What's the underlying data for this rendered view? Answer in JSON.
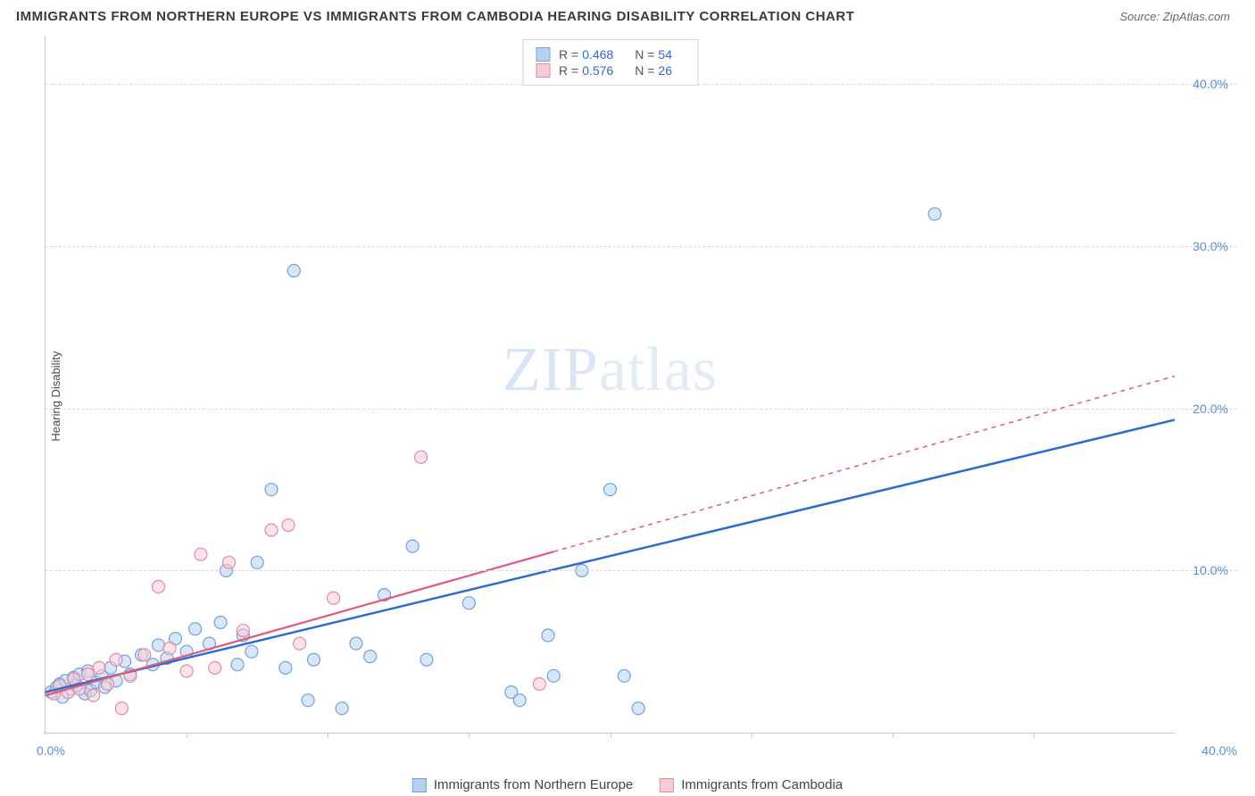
{
  "header": {
    "title": "IMMIGRANTS FROM NORTHERN EUROPE VS IMMIGRANTS FROM CAMBODIA HEARING DISABILITY CORRELATION CHART",
    "source": "Source: ZipAtlas.com"
  },
  "ylabel": "Hearing Disability",
  "watermark": {
    "bold": "ZIP",
    "light": "atlas"
  },
  "chart": {
    "type": "scatter",
    "xlim": [
      0,
      40
    ],
    "ylim": [
      0,
      43
    ],
    "x_tick_min_label": "0.0%",
    "x_tick_max_label": "40.0%",
    "y_gridlines": [
      10,
      20,
      30,
      40
    ],
    "y_tick_labels": [
      "10.0%",
      "20.0%",
      "30.0%",
      "40.0%"
    ],
    "x_minor_ticks": [
      5,
      10,
      15,
      20,
      25,
      30,
      35
    ],
    "background_color": "#ffffff",
    "grid_color": "#d8d8d8",
    "axis_color": "#c9c9c9",
    "tick_text_color": "#5b8fd6",
    "marker_radius": 7,
    "marker_opacity": 0.55,
    "series": [
      {
        "key": "northern_europe",
        "label": "Immigrants from Northern Europe",
        "fill": "#b8d1f0",
        "stroke": "#6fa3e0",
        "line_color": "#2e6bd1",
        "line_width": 2.5,
        "r_value": "0.468",
        "n_value": "54",
        "trend": {
          "x1": 0,
          "y1": 2.5,
          "x2": 40,
          "y2": 19.3,
          "solid_until_x": 40
        },
        "points": [
          [
            0.2,
            2.5
          ],
          [
            0.4,
            2.8
          ],
          [
            0.5,
            3.0
          ],
          [
            0.6,
            2.2
          ],
          [
            0.7,
            3.2
          ],
          [
            0.9,
            2.7
          ],
          [
            1.0,
            3.4
          ],
          [
            1.1,
            2.9
          ],
          [
            1.2,
            3.6
          ],
          [
            1.4,
            2.4
          ],
          [
            1.5,
            3.8
          ],
          [
            1.6,
            2.6
          ],
          [
            1.8,
            3.1
          ],
          [
            2.0,
            3.5
          ],
          [
            2.1,
            2.8
          ],
          [
            2.3,
            4.0
          ],
          [
            2.5,
            3.2
          ],
          [
            2.8,
            4.4
          ],
          [
            3.0,
            3.6
          ],
          [
            3.4,
            4.8
          ],
          [
            3.8,
            4.2
          ],
          [
            4.0,
            5.4
          ],
          [
            4.3,
            4.6
          ],
          [
            4.6,
            5.8
          ],
          [
            5.0,
            5.0
          ],
          [
            5.3,
            6.4
          ],
          [
            5.8,
            5.5
          ],
          [
            6.2,
            6.8
          ],
          [
            6.4,
            10.0
          ],
          [
            6.8,
            4.2
          ],
          [
            7.0,
            6.0
          ],
          [
            7.3,
            5.0
          ],
          [
            7.5,
            10.5
          ],
          [
            8.0,
            15.0
          ],
          [
            8.5,
            4.0
          ],
          [
            8.8,
            28.5
          ],
          [
            9.3,
            2.0
          ],
          [
            9.5,
            4.5
          ],
          [
            10.5,
            1.5
          ],
          [
            11.0,
            5.5
          ],
          [
            11.5,
            4.7
          ],
          [
            12.0,
            8.5
          ],
          [
            13.0,
            11.5
          ],
          [
            13.5,
            4.5
          ],
          [
            15.0,
            8.0
          ],
          [
            16.5,
            2.5
          ],
          [
            16.8,
            2.0
          ],
          [
            17.8,
            6.0
          ],
          [
            18.0,
            3.5
          ],
          [
            19.0,
            10.0
          ],
          [
            20.0,
            15.0
          ],
          [
            20.5,
            3.5
          ],
          [
            21.0,
            1.5
          ],
          [
            31.5,
            32.0
          ]
        ]
      },
      {
        "key": "cambodia",
        "label": "Immigrants from Cambodia",
        "fill": "#f6cdd5",
        "stroke": "#e68aa0",
        "line_color": "#e05a7a",
        "line_width": 2.2,
        "r_value": "0.576",
        "n_value": "26",
        "trend": {
          "x1": 0,
          "y1": 2.3,
          "x2": 40,
          "y2": 22.0,
          "solid_until_x": 18
        },
        "points": [
          [
            0.3,
            2.4
          ],
          [
            0.5,
            2.9
          ],
          [
            0.8,
            2.5
          ],
          [
            1.0,
            3.3
          ],
          [
            1.2,
            2.7
          ],
          [
            1.5,
            3.6
          ],
          [
            1.7,
            2.3
          ],
          [
            1.9,
            4.0
          ],
          [
            2.2,
            3.0
          ],
          [
            2.5,
            4.5
          ],
          [
            2.7,
            1.5
          ],
          [
            3.0,
            3.5
          ],
          [
            3.5,
            4.8
          ],
          [
            4.0,
            9.0
          ],
          [
            4.4,
            5.2
          ],
          [
            5.0,
            3.8
          ],
          [
            5.5,
            11.0
          ],
          [
            6.0,
            4.0
          ],
          [
            6.5,
            10.5
          ],
          [
            7.0,
            6.3
          ],
          [
            8.0,
            12.5
          ],
          [
            8.6,
            12.8
          ],
          [
            9.0,
            5.5
          ],
          [
            10.2,
            8.3
          ],
          [
            13.3,
            17.0
          ],
          [
            17.5,
            3.0
          ]
        ]
      }
    ]
  },
  "legend_top": {
    "r_label": "R =",
    "n_label": "N ="
  }
}
